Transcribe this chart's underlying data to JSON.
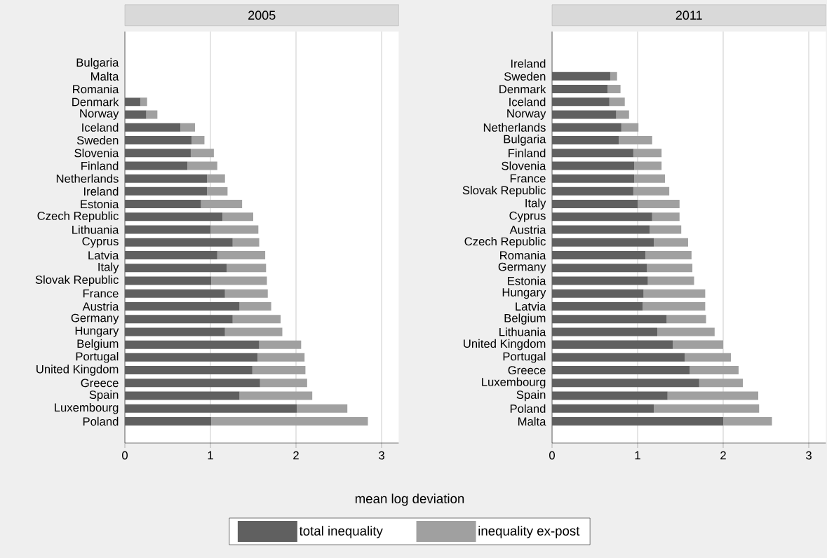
{
  "chart_data": [
    {
      "type": "bar",
      "orientation": "horizontal",
      "stacked": true,
      "title": "2005",
      "xlabel": "mean log deviation",
      "categories": [
        "Bulgaria",
        "Malta",
        "Romania",
        "Denmark",
        "Norway",
        "Iceland",
        "Sweden",
        "Slovenia",
        "Finland",
        "Netherlands",
        "Ireland",
        "Estonia",
        "Czech Republic",
        "Lithuania",
        "Cyprus",
        "Latvia",
        "Italy",
        "Slovak Republic",
        "France",
        "Austria",
        "Germany",
        "Hungary",
        "Belgium",
        "Portugal",
        "United Kingdom",
        "Greece",
        "Spain",
        "Luxembourg",
        "Poland"
      ],
      "series": [
        {
          "name": "total inequality",
          "color": "#606060",
          "values": [
            null,
            null,
            null,
            0.18,
            0.25,
            0.65,
            0.78,
            0.77,
            0.73,
            0.96,
            0.96,
            0.89,
            1.14,
            1.0,
            1.26,
            1.08,
            1.19,
            1.01,
            1.17,
            1.34,
            1.26,
            1.17,
            1.57,
            1.55,
            1.49,
            1.58,
            1.34,
            2.01,
            1.01
          ]
        },
        {
          "name": "inequality ex-post",
          "color": "#a0a0a0",
          "values": [
            null,
            null,
            null,
            0.08,
            0.13,
            0.17,
            0.15,
            0.27,
            0.35,
            0.21,
            0.24,
            0.48,
            0.36,
            0.56,
            0.31,
            0.56,
            0.46,
            0.65,
            0.5,
            0.37,
            0.56,
            0.67,
            0.49,
            0.55,
            0.62,
            0.55,
            0.85,
            0.59,
            1.83
          ]
        }
      ],
      "xlim": [
        0,
        3.2
      ],
      "xticks": [
        0,
        1,
        2,
        3
      ],
      "grid": "x",
      "legend": "bottom"
    },
    {
      "type": "bar",
      "orientation": "horizontal",
      "stacked": true,
      "title": "2011",
      "categories": [
        "Ireland",
        "Sweden",
        "Denmark",
        "Iceland",
        "Norway",
        "Netherlands",
        "Bulgaria",
        "Finland",
        "Slovenia",
        "France",
        "Slovak Republic",
        "Italy",
        "Cyprus",
        "Austria",
        "Czech Republic",
        "Romania",
        "Germany",
        "Estonia",
        "Hungary",
        "Latvia",
        "Belgium",
        "Lithuania",
        "United Kingdom",
        "Portugal",
        "Greece",
        "Luxembourg",
        "Spain",
        "Poland",
        "Malta"
      ],
      "series": [
        {
          "color": "#606060",
          "values": [
            null,
            0.68,
            0.65,
            0.67,
            0.75,
            0.81,
            0.78,
            0.95,
            0.96,
            0.96,
            0.95,
            1.0,
            1.17,
            1.14,
            1.19,
            1.09,
            1.11,
            1.12,
            1.07,
            1.06,
            1.34,
            1.23,
            1.41,
            1.55,
            1.61,
            1.72,
            1.35,
            1.19,
            2.0
          ]
        },
        {
          "color": "#a0a0a0",
          "values": [
            null,
            0.08,
            0.15,
            0.18,
            0.15,
            0.2,
            0.39,
            0.33,
            0.32,
            0.36,
            0.42,
            0.49,
            0.32,
            0.37,
            0.4,
            0.54,
            0.53,
            0.54,
            0.72,
            0.73,
            0.46,
            0.67,
            0.59,
            0.54,
            0.57,
            0.51,
            1.06,
            1.23,
            0.57
          ]
        }
      ],
      "xlim": [
        0,
        3.2
      ],
      "xticks": [
        0,
        1,
        2,
        3
      ],
      "grid": "x"
    }
  ]
}
